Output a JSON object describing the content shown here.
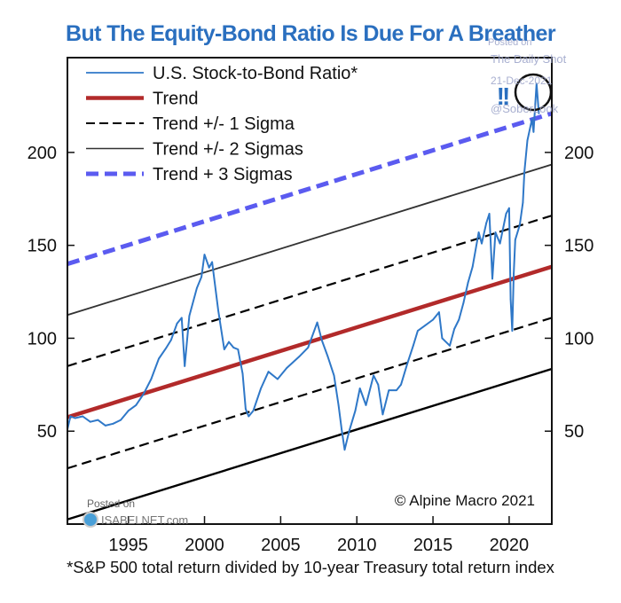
{
  "chart_data": {
    "type": "line",
    "title": "But The Equity-Bond Ratio Is Due For A Breather",
    "xlabel": "",
    "ylabel": "",
    "xlim": [
      1991.0,
      2022.8
    ],
    "ylim": [
      0,
      251
    ],
    "grid": false,
    "x_ticks": [
      1995,
      2000,
      2005,
      2010,
      2015,
      2020
    ],
    "x_tick_labels": [
      "1995",
      "2000",
      "2005",
      "2010",
      "2015",
      "2020"
    ],
    "y_ticks": [
      50,
      100,
      150,
      200
    ],
    "y_tick_labels": [
      "50",
      "100",
      "150",
      "200"
    ],
    "legend_position": "top-left",
    "legend": [
      {
        "key": "ratio",
        "label": "U.S. Stock-to-Bond Ratio*"
      },
      {
        "key": "trend",
        "label": "Trend"
      },
      {
        "key": "sigma1",
        "label": "Trend +/- 1 Sigma"
      },
      {
        "key": "sigma2",
        "label": "Trend +/- 2 Sigmas"
      },
      {
        "key": "sigma3",
        "label": "Trend + 3 Sigmas"
      }
    ],
    "trend": {
      "start": [
        1991.0,
        57.5
      ],
      "end": [
        2022.8,
        138.5
      ]
    },
    "sigma": 27.5,
    "bands": [
      {
        "name": "Trend + 3 Sigmas",
        "offset": 3,
        "color": "#5b5bf0",
        "style": "long-dash"
      },
      {
        "name": "Trend + 2 Sigmas",
        "offset": 2,
        "color": "#333333",
        "style": "solid-thin"
      },
      {
        "name": "Trend + 1 Sigma",
        "offset": 1,
        "color": "#000000",
        "style": "dash"
      },
      {
        "name": "Trend",
        "offset": 0,
        "color": "#b22a2a",
        "style": "solid-thick"
      },
      {
        "name": "Trend - 1 Sigma",
        "offset": -1,
        "color": "#000000",
        "style": "dash"
      },
      {
        "name": "Trend - 2 Sigmas",
        "offset": -2,
        "color": "#000000",
        "style": "solid"
      }
    ],
    "series": [
      {
        "name": "U.S. Stock-to-Bond Ratio*",
        "color": "#2f78c8",
        "x": [
          1991.0,
          1991.2,
          1991.5,
          1992.0,
          1992.5,
          1993.0,
          1993.5,
          1994.0,
          1994.5,
          1995.0,
          1995.5,
          1996.0,
          1996.5,
          1997.0,
          1997.5,
          1997.8,
          1998.2,
          1998.5,
          1998.7,
          1999.0,
          1999.5,
          1999.8,
          2000.0,
          2000.3,
          2000.5,
          2000.9,
          2001.3,
          2001.6,
          2001.9,
          2002.2,
          2002.5,
          2002.7,
          2002.9,
          2003.2,
          2003.7,
          2004.2,
          2004.8,
          2005.4,
          2006.2,
          2006.8,
          2007.4,
          2007.7,
          2008.1,
          2008.5,
          2008.8,
          2009.0,
          2009.2,
          2009.5,
          2009.9,
          2010.2,
          2010.6,
          2011.1,
          2011.4,
          2011.7,
          2012.1,
          2012.6,
          2012.9,
          2013.3,
          2013.7,
          2014.0,
          2014.5,
          2015.0,
          2015.4,
          2015.6,
          2016.1,
          2016.4,
          2016.7,
          2017.0,
          2017.3,
          2017.6,
          2018.0,
          2018.2,
          2018.5,
          2018.7,
          2018.9,
          2019.1,
          2019.4,
          2019.8,
          2020.0,
          2020.1,
          2020.2,
          2020.3,
          2020.4,
          2020.7,
          2020.9,
          2021.0,
          2021.2,
          2021.5,
          2021.6,
          2021.7,
          2021.8,
          2021.95
        ],
        "values": [
          51,
          58,
          57,
          58,
          55,
          56,
          53,
          54,
          56,
          61,
          64,
          70,
          78,
          89,
          95,
          99,
          108,
          111,
          85,
          112,
          127,
          133,
          145,
          138,
          141,
          115,
          94,
          98,
          95,
          94,
          81,
          62,
          58,
          61,
          73,
          82,
          78,
          84,
          90,
          95,
          108.5,
          99,
          90,
          80,
          64,
          51,
          40,
          50,
          61,
          73,
          64,
          80,
          75,
          59,
          72,
          72,
          75,
          86,
          96,
          104,
          107,
          110,
          114,
          100,
          96,
          105,
          110,
          119,
          130,
          138.5,
          157,
          151,
          162,
          167,
          132,
          157,
          151,
          167,
          170,
          121,
          104,
          135,
          153,
          161,
          173,
          189.5,
          206.5,
          218,
          211,
          224,
          237,
          221
        ]
      }
    ],
    "annotations": [
      {
        "text": "© Alpine Macro 2021",
        "position": "bottom-right"
      },
      {
        "text": "!!",
        "color": "#2a6fbf",
        "position": "top-right"
      },
      {
        "type": "circle",
        "around": "2021 peak"
      }
    ]
  },
  "footnote": "*S&P 500 total return divided by 10-year Treasury total return index",
  "watermarks": {
    "isabelnet_posted": "Posted on",
    "isabelnet_site": "ISABELNET.com",
    "dailyshot_posted": "Posted on",
    "dailyshot_name": "The Daily Shot",
    "dailyshot_date": "21-Dec-2021",
    "dailyshot_handle": "@SoberLook"
  }
}
